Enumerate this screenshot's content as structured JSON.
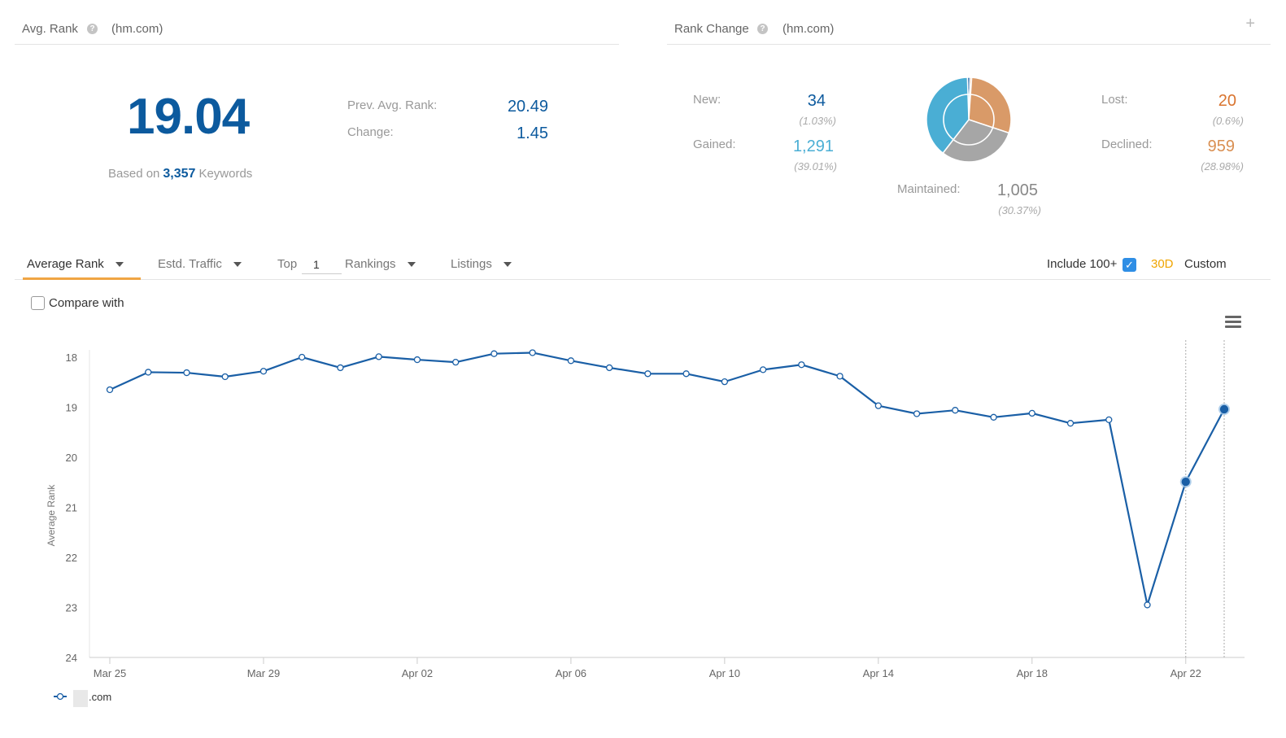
{
  "avg_rank_panel": {
    "title": "Avg. Rank",
    "domain": "(hm.com)",
    "value": "19.04",
    "based_on_label": "Based on",
    "keywords_count": "3,357",
    "keywords_label": "Keywords",
    "prev_label": "Prev. Avg. Rank:",
    "prev_value": "20.49",
    "change_label": "Change:",
    "change_value": "1.45"
  },
  "rank_change_panel": {
    "title": "Rank Change",
    "domain": "(hm.com)",
    "plus_label": "+",
    "new_label": "New:",
    "new_value": "34",
    "new_pct": "(1.03%)",
    "gained_label": "Gained:",
    "gained_value": "1,291",
    "gained_pct": "(39.01%)",
    "maintained_label": "Maintained:",
    "maintained_value": "1,005",
    "maintained_pct": "(30.37%)",
    "lost_label": "Lost:",
    "lost_value": "20",
    "lost_pct": "(0.6%)",
    "declined_label": "Declined:",
    "declined_value": "959",
    "declined_pct": "(28.98%)",
    "colors": {
      "new": "#0c5a9e",
      "gained": "#4aaed4",
      "maintained": "#999999",
      "lost": "#d9742f",
      "declined": "#d98f52"
    }
  },
  "tabs": {
    "average_rank": "Average Rank",
    "traffic": "Estd. Traffic",
    "top_label": "Top",
    "top_value": "1",
    "rankings": "Rankings",
    "listings": "Listings",
    "include_100": "Include 100+",
    "range_30d": "30D",
    "custom": "Custom"
  },
  "compare_label": "Compare with",
  "colors": {
    "accent": "#f0a544",
    "line": "#1a5fa6",
    "range_active": "#f0a500"
  },
  "chart_data": {
    "type": "line",
    "ylabel": "Average Rank",
    "y_inverted": true,
    "ylim": [
      18,
      24
    ],
    "yticks": [
      18,
      19,
      20,
      21,
      22,
      23,
      24
    ],
    "x_ticks": [
      "Mar 25",
      "Mar 29",
      "Apr 02",
      "Apr 06",
      "Apr 10",
      "Apr 14",
      "Apr 18",
      "Apr 22"
    ],
    "x": [
      "Mar 25",
      "Mar 26",
      "Mar 27",
      "Mar 28",
      "Mar 29",
      "Mar 30",
      "Mar 31",
      "Apr 01",
      "Apr 02",
      "Apr 03",
      "Apr 04",
      "Apr 05",
      "Apr 06",
      "Apr 07",
      "Apr 08",
      "Apr 09",
      "Apr 10",
      "Apr 11",
      "Apr 12",
      "Apr 13",
      "Apr 14",
      "Apr 15",
      "Apr 16",
      "Apr 17",
      "Apr 18",
      "Apr 19",
      "Apr 20",
      "Apr 21",
      "Apr 22",
      "Apr 23"
    ],
    "series": [
      {
        "name": ".com",
        "values": [
          18.65,
          18.3,
          18.31,
          18.39,
          18.28,
          18.0,
          18.21,
          17.99,
          18.05,
          18.1,
          17.93,
          17.91,
          18.07,
          18.21,
          18.33,
          18.33,
          18.49,
          18.25,
          18.15,
          18.38,
          18.97,
          19.13,
          19.06,
          19.2,
          19.12,
          19.32,
          19.25,
          22.95,
          20.49,
          19.04
        ]
      }
    ],
    "grid": false,
    "legend": "bottom-left"
  }
}
